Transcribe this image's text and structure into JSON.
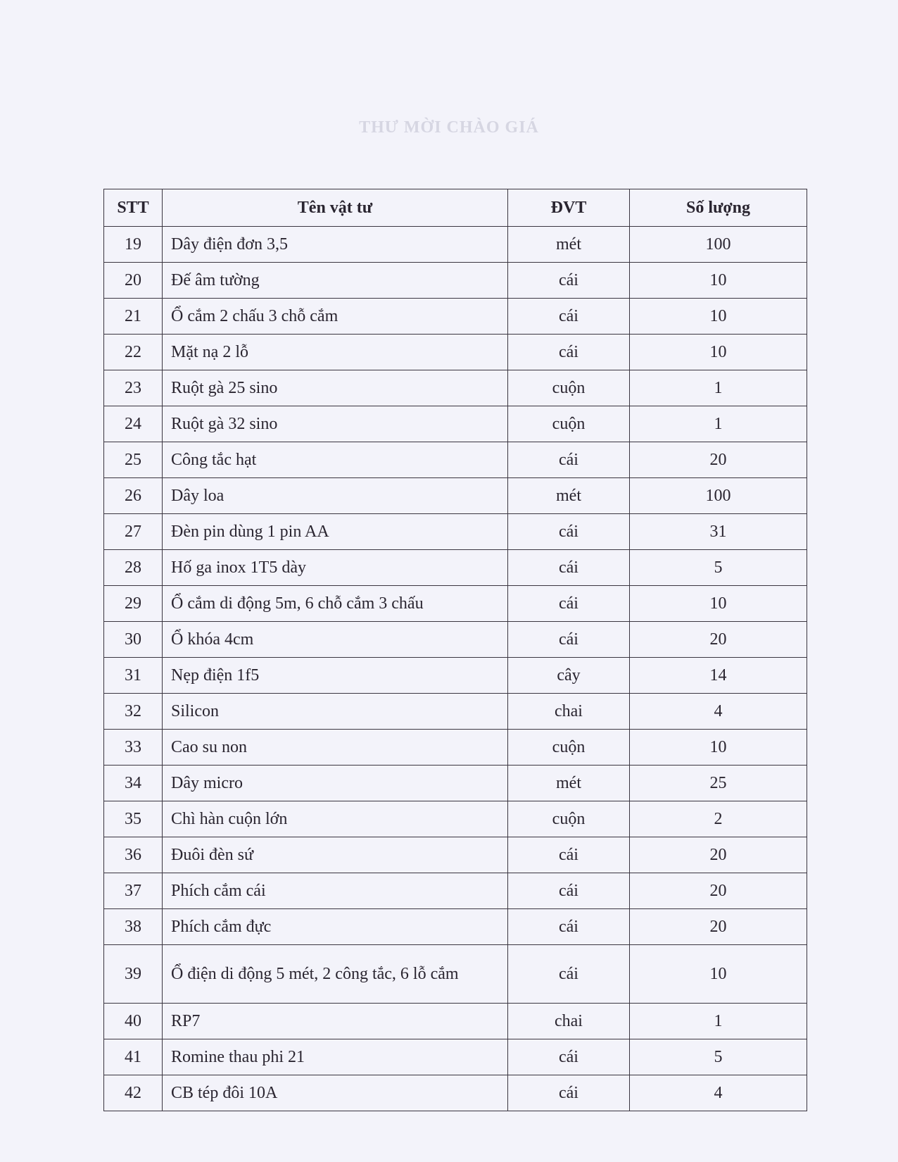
{
  "background_title": "THƯ MỜI CHÀO GIÁ",
  "table": {
    "headers": [
      "STT",
      "Tên vật tư",
      "ĐVT",
      "Số lượng"
    ],
    "rows": [
      {
        "stt": "19",
        "name": "Dây điện đơn 3,5",
        "unit": "mét",
        "qty": "100"
      },
      {
        "stt": "20",
        "name": "Đế âm tường",
        "unit": "cái",
        "qty": "10"
      },
      {
        "stt": "21",
        "name": "Ổ cắm 2 chấu 3 chỗ cắm",
        "unit": "cái",
        "qty": "10"
      },
      {
        "stt": "22",
        "name": "Mặt nạ 2 lỗ",
        "unit": "cái",
        "qty": "10"
      },
      {
        "stt": "23",
        "name": "Ruột gà 25 sino",
        "unit": "cuộn",
        "qty": "1"
      },
      {
        "stt": "24",
        "name": "Ruột gà 32 sino",
        "unit": "cuộn",
        "qty": "1"
      },
      {
        "stt": "25",
        "name": "Công tắc hạt",
        "unit": "cái",
        "qty": "20"
      },
      {
        "stt": "26",
        "name": "Dây loa",
        "unit": "mét",
        "qty": "100"
      },
      {
        "stt": "27",
        "name": "Đèn pin dùng 1 pin AA",
        "unit": "cái",
        "qty": "31"
      },
      {
        "stt": "28",
        "name": "Hố ga inox 1T5 dày",
        "unit": "cái",
        "qty": "5"
      },
      {
        "stt": "29",
        "name": "Ổ cắm di động 5m, 6 chỗ cắm 3 chấu",
        "unit": "cái",
        "qty": "10"
      },
      {
        "stt": "30",
        "name": "Ổ khóa 4cm",
        "unit": "cái",
        "qty": "20"
      },
      {
        "stt": "31",
        "name": "Nẹp điện 1f5",
        "unit": "cây",
        "qty": "14"
      },
      {
        "stt": "32",
        "name": "Silicon",
        "unit": "chai",
        "qty": "4"
      },
      {
        "stt": "33",
        "name": "Cao su non",
        "unit": "cuộn",
        "qty": "10"
      },
      {
        "stt": "34",
        "name": "Dây micro",
        "unit": "mét",
        "qty": "25"
      },
      {
        "stt": "35",
        "name": "Chì hàn cuộn lớn",
        "unit": "cuộn",
        "qty": "2"
      },
      {
        "stt": "36",
        "name": "Đuôi đèn sứ",
        "unit": "cái",
        "qty": "20"
      },
      {
        "stt": "37",
        "name": "Phích cắm cái",
        "unit": "cái",
        "qty": "20"
      },
      {
        "stt": "38",
        "name": "Phích cắm đực",
        "unit": "cái",
        "qty": "20"
      },
      {
        "stt": "39",
        "name": "Ổ điện di động 5 mét, 2 công tắc, 6 lỗ cắm",
        "unit": "cái",
        "qty": "10"
      },
      {
        "stt": "40",
        "name": "RP7",
        "unit": "chai",
        "qty": "1"
      },
      {
        "stt": "41",
        "name": "Romine thau phi 21",
        "unit": "cái",
        "qty": "5"
      },
      {
        "stt": "42",
        "name": "CB tép đôi 10A",
        "unit": "cái",
        "qty": "4"
      }
    ]
  }
}
